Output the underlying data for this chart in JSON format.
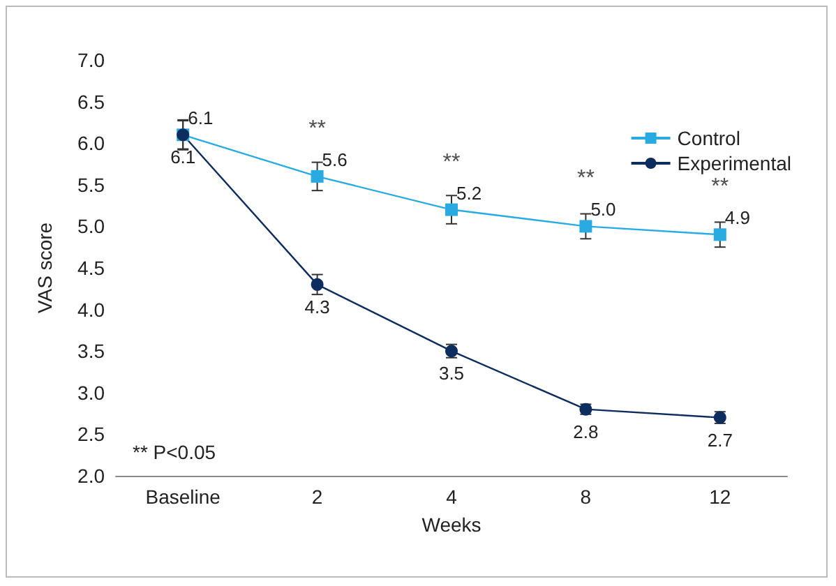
{
  "chart_data": {
    "type": "line",
    "xlabel": "Weeks",
    "ylabel": "VAS score",
    "categories": [
      "Baseline",
      "2",
      "4",
      "8",
      "12"
    ],
    "ylim": [
      2.0,
      7.0
    ],
    "yticks": [
      {
        "value": 2,
        "label": "2.0"
      },
      {
        "value": 2.5,
        "label": "2.5"
      },
      {
        "value": 3,
        "label": "3.0"
      },
      {
        "value": 3.5,
        "label": "3.5"
      },
      {
        "value": 4,
        "label": "4.0"
      },
      {
        "value": 4.5,
        "label": "4.5"
      },
      {
        "value": 5,
        "label": "5.0"
      },
      {
        "value": 5.5,
        "label": "5.5"
      },
      {
        "value": 6,
        "label": "6.0"
      },
      {
        "value": 6.5,
        "label": "6.5"
      },
      {
        "value": 7,
        "label": "7.0"
      }
    ],
    "series": [
      {
        "name": "Control",
        "color": "#29abe2",
        "marker": "square",
        "values": [
          6.1,
          5.6,
          5.2,
          5.0,
          4.9
        ],
        "value_labels": [
          "6.1",
          "5.6",
          "5.2",
          "5.0",
          "4.9"
        ],
        "errors": [
          0.17,
          0.17,
          0.17,
          0.15,
          0.15
        ]
      },
      {
        "name": "Experimental",
        "color": "#0d2d5e",
        "marker": "circle",
        "values": [
          6.1,
          4.3,
          3.5,
          2.8,
          2.7
        ],
        "value_labels": [
          "6.1",
          "4.3",
          "3.5",
          "2.8",
          "2.7"
        ],
        "errors": [
          0.18,
          0.12,
          0.08,
          0.06,
          0.07
        ]
      }
    ],
    "annotations": [
      {
        "text": "**",
        "x": "2",
        "y": 5.6
      },
      {
        "text": "**",
        "x": "4",
        "y": 5.2
      },
      {
        "text": "**",
        "x": "8",
        "y": 5.0
      },
      {
        "text": "**",
        "x": "12",
        "y": 4.9
      },
      "** P<0.05"
    ],
    "legend": "top right",
    "grid": false
  }
}
